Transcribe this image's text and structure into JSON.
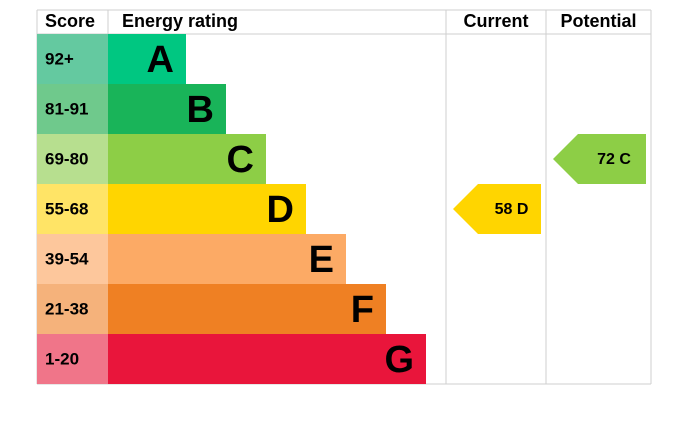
{
  "chart_data": {
    "type": "epc",
    "score_header": "Score",
    "rating_header": "Energy rating",
    "bands": [
      {
        "score": "92+",
        "letter": "A",
        "color": "#00c781",
        "score_color": "#64c9a0"
      },
      {
        "score": "81-91",
        "letter": "B",
        "color": "#19b459",
        "score_color": "#6fc98c"
      },
      {
        "score": "69-80",
        "letter": "C",
        "color": "#8dce46",
        "score_color": "#b7df8f"
      },
      {
        "score": "55-68",
        "letter": "D",
        "color": "#ffd500",
        "score_color": "#ffe466"
      },
      {
        "score": "39-54",
        "letter": "E",
        "color": "#fcaa65",
        "score_color": "#fdc79c"
      },
      {
        "score": "21-38",
        "letter": "F",
        "color": "#ef8023",
        "score_color": "#f5b27b"
      },
      {
        "score": "1-20",
        "letter": "G",
        "color": "#e9153b",
        "score_color": "#f07589"
      }
    ],
    "series": [
      {
        "name": "Current",
        "values": [
          58
        ],
        "value_labels": [
          "58 D"
        ],
        "color": "#ffd500"
      },
      {
        "name": "Potential",
        "values": [
          72
        ],
        "value_labels": [
          "72 C"
        ],
        "color": "#8dce46"
      }
    ]
  }
}
